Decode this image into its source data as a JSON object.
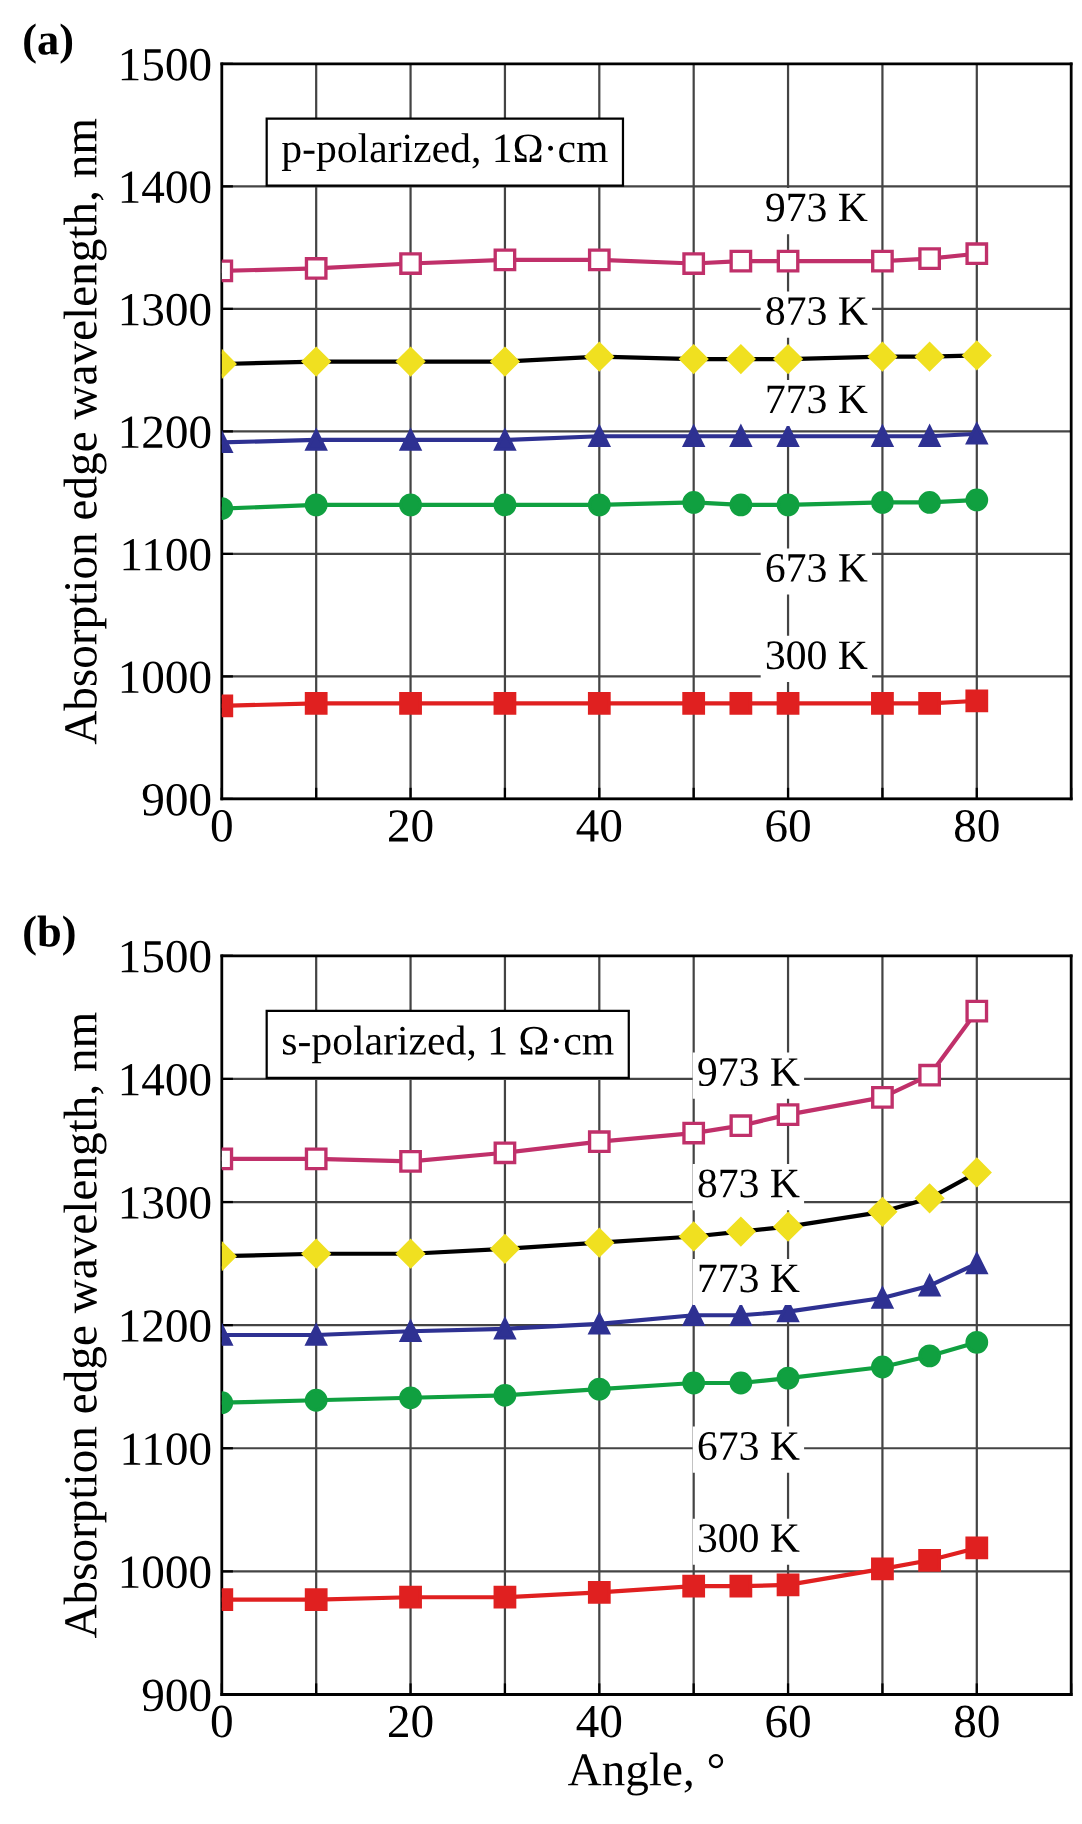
{
  "chart_data": [
    {
      "type": "line",
      "title": "(a)",
      "ylabel": "Absorption edge wavelength, nm",
      "annotations": [
        "p-polarized, 1Ω·cm"
      ],
      "x": [
        0,
        10,
        20,
        30,
        40,
        50,
        55,
        60,
        70,
        75,
        80
      ],
      "xlim": [
        0,
        90
      ],
      "xticks": [
        0,
        {
          "value": 10,
          "label": null
        },
        20,
        {
          "value": 30,
          "label": null
        },
        40,
        {
          "value": 50,
          "label": null
        },
        60,
        {
          "value": 70,
          "label": null
        },
        80,
        {
          "value": 90,
          "label": null
        }
      ],
      "ylim": [
        900,
        1500
      ],
      "yticks": [
        900,
        1000,
        1100,
        1200,
        1300,
        1400,
        1500
      ],
      "grid": true,
      "series": [
        {
          "name": "973 K",
          "color": "#c0306a",
          "marker": "square",
          "values": [
            1331,
            1333,
            1337,
            1340,
            1340,
            1337,
            1339,
            1339,
            1339,
            1341,
            1345
          ]
        },
        {
          "name": "873 K",
          "color": "#f0e020",
          "marker": "diamond",
          "values": [
            1255,
            1257,
            1257,
            1257,
            1261,
            1259,
            1259,
            1259,
            1261,
            1261,
            1262
          ]
        },
        {
          "name": "773 K",
          "color": "#2e3192",
          "marker": "triangle",
          "values": [
            1191,
            1193,
            1193,
            1193,
            1196,
            1196,
            1196,
            1196,
            1196,
            1196,
            1198
          ]
        },
        {
          "name": "673 K",
          "color": "#10a040",
          "marker": "circle",
          "values": [
            1137,
            1140,
            1140,
            1140,
            1140,
            1142,
            1140,
            1140,
            1142,
            1142,
            1144
          ]
        },
        {
          "name": "300 K",
          "color": "#e02020",
          "marker": "square",
          "values": [
            976,
            978,
            978,
            978,
            978,
            978,
            978,
            978,
            978,
            978,
            980
          ]
        }
      ]
    },
    {
      "type": "line",
      "title": "(b)",
      "ylabel": "Absorption edge wavelength, nm",
      "xlabel": "Angle, °",
      "annotations": [
        "s-polarized, 1 Ω·cm"
      ],
      "x": [
        0,
        10,
        20,
        30,
        40,
        50,
        55,
        60,
        70,
        75,
        80
      ],
      "xlim": [
        0,
        90
      ],
      "xticks": [
        0,
        {
          "value": 10,
          "label": null
        },
        20,
        {
          "value": 30,
          "label": null
        },
        40,
        {
          "value": 50,
          "label": null
        },
        60,
        {
          "value": 70,
          "label": null
        },
        80,
        {
          "value": 90,
          "label": null
        }
      ],
      "ylim": [
        900,
        1500
      ],
      "yticks": [
        900,
        1000,
        1100,
        1200,
        1300,
        1400,
        1500
      ],
      "grid": true,
      "series": [
        {
          "name": "973 K",
          "color": "#c0306a",
          "marker": "square",
          "values": [
            1335,
            1335,
            1333,
            1340,
            1349,
            1356,
            1362,
            1371,
            1385,
            1403,
            1455
          ]
        },
        {
          "name": "873 K",
          "color": "#f0e020",
          "marker": "diamond",
          "values": [
            1256,
            1258,
            1258,
            1262,
            1267,
            1272,
            1276,
            1280,
            1292,
            1303,
            1324
          ]
        },
        {
          "name": "773 K",
          "color": "#2e3192",
          "marker": "triangle",
          "values": [
            1192,
            1192,
            1195,
            1197,
            1201,
            1208,
            1208,
            1211,
            1222,
            1232,
            1250
          ]
        },
        {
          "name": "673 K",
          "color": "#10a040",
          "marker": "circle",
          "values": [
            1137,
            1139,
            1141,
            1143,
            1148,
            1153,
            1153,
            1157,
            1166,
            1175,
            1186
          ]
        },
        {
          "name": "300 K",
          "color": "#e02020",
          "marker": "square",
          "values": [
            977,
            977,
            979,
            979,
            983,
            988,
            988,
            989,
            1002,
            1009,
            1019
          ]
        }
      ]
    }
  ]
}
